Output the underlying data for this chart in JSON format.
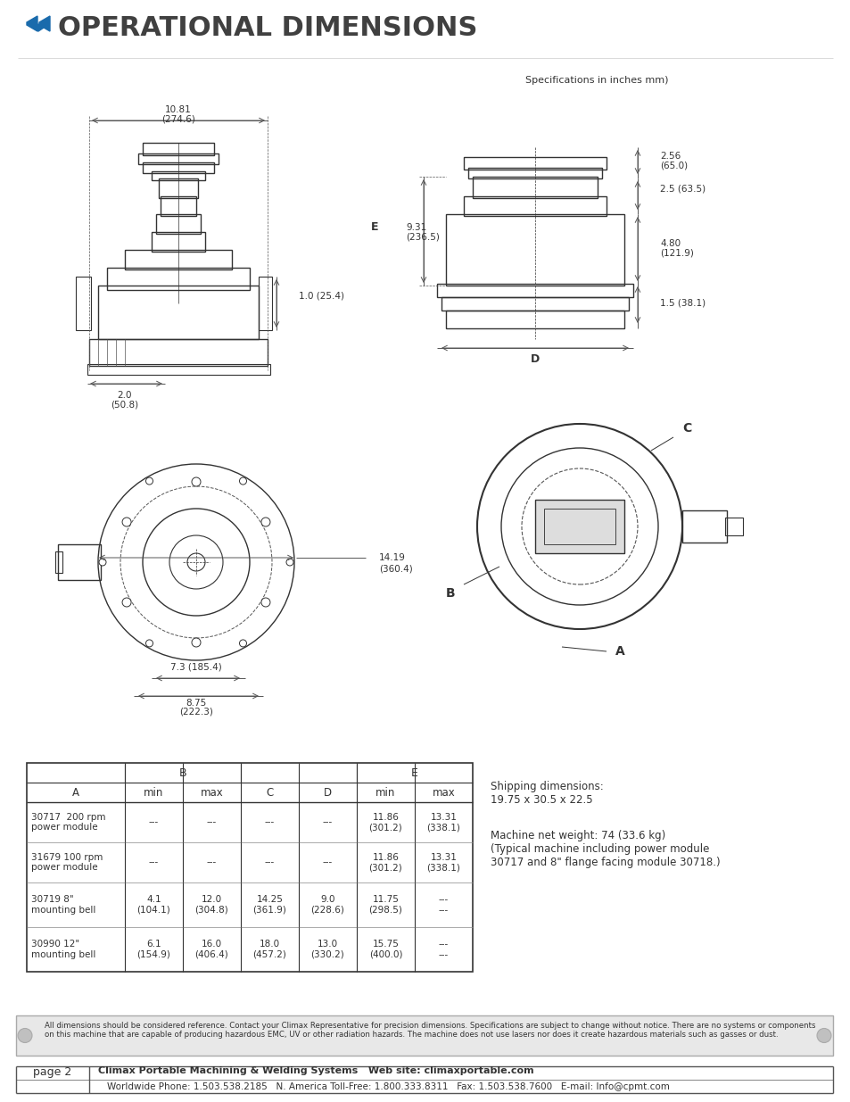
{
  "title": "OPERATIONAL DIMENSIONS",
  "title_color": "#404040",
  "icon_color": "#1a6bac",
  "spec_note": "Specifications in inches mm)",
  "bg_color": "#ffffff",
  "table_header_row1": [
    "",
    "B",
    "",
    "",
    "",
    "E",
    ""
  ],
  "table_header_row2": [
    "A",
    "min",
    "max",
    "C",
    "D",
    "min",
    "max"
  ],
  "table_rows": [
    [
      "30717  200 rpm\npower module",
      "---",
      "---",
      "---",
      "---",
      "11.86\n(301.2)",
      "13.31\n(338.1)"
    ],
    [
      "31679 100 rpm\npower module",
      "---",
      "---",
      "---",
      "---",
      "11.86\n(301.2)",
      "13.31\n(338.1)"
    ],
    [
      "30719 8\"\nmounting bell",
      "4.1\n(104.1)",
      "12.0\n(304.8)",
      "14.25\n(361.9)",
      "9.0\n(228.6)",
      "11.75\n(298.5)",
      "---\n---"
    ],
    [
      "30990 12\"\nmounting bell",
      "6.1\n(154.9)",
      "16.0\n(406.4)",
      "18.0\n(457.2)",
      "13.0\n(330.2)",
      "15.75\n(400.0)",
      "---\n---"
    ]
  ],
  "shipping_text": "Shipping dimensions:\n19.75 x 30.5 x 22.5",
  "weight_text": "Machine net weight: 74 (33.6 kg)\n(Typical machine including power module\n30717 and 8\" flange facing module 30718.)",
  "disclaimer": "All dimensions should be considered reference. Contact your Climax Representative for precision dimensions. Specifications are subject to change without notice. There are no systems or components\non this machine that are capable of producing hazardous EMC, UV or other radiation hazards. The machine does not use lasers nor does it create hazardous materials such as gasses or dust.",
  "footer_left": "page 2",
  "footer_company": "Climax Portable Machining & Welding Systems",
  "footer_website": "Web site: climaxportable.com",
  "footer_phone": "Worldwide Phone: 1.503.538.2185   N. America Toll-Free: 1.800.333.8311   Fax: 1.503.538.7600   E-mail: Info@cpmt.com",
  "drawing_color": "#333333",
  "dim_color": "#333333"
}
